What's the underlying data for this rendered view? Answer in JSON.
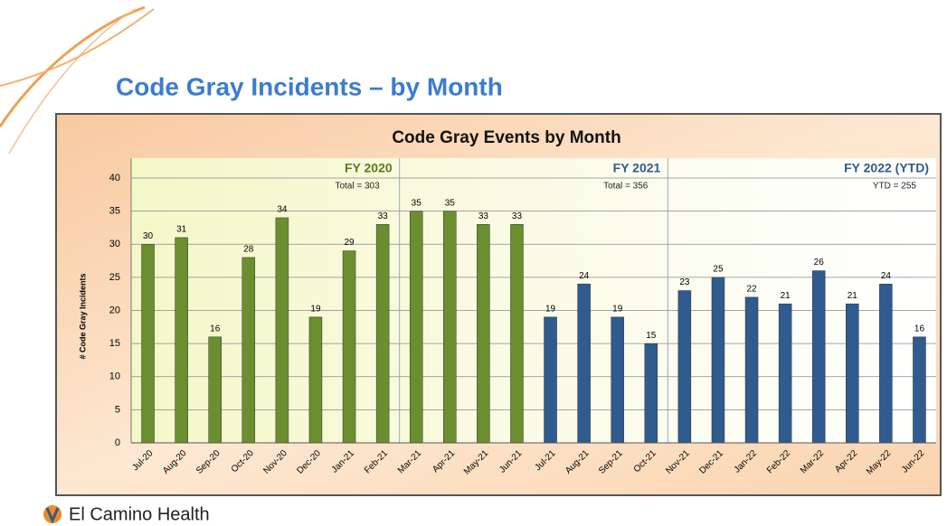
{
  "slide_title": "Code Gray Incidents – by Month",
  "logo_text": "El Camino Health",
  "chart_data": {
    "type": "bar",
    "title": "Code Gray Events by Month",
    "y_label": "# Code Gray Incidents",
    "categories": [
      "Jul-20",
      "Aug-20",
      "Sep-20",
      "Oct-20",
      "Nov-20",
      "Dec-20",
      "Jan-21",
      "Feb-21",
      "Mar-21",
      "Apr-21",
      "May-21",
      "Jun-21",
      "Jul-21",
      "Aug-21",
      "Sep-21",
      "Oct-21",
      "Nov-21",
      "Dec-21",
      "Jan-22",
      "Feb-22",
      "Mar-22",
      "Apr-22",
      "May-22",
      "Jun-22"
    ],
    "values": [
      30,
      31,
      16,
      28,
      34,
      19,
      29,
      33,
      35,
      35,
      33,
      33,
      19,
      24,
      19,
      15,
      23,
      25,
      22,
      21,
      26,
      21,
      24,
      16
    ],
    "colors": [
      "#6b8e2e",
      "#6b8e2e",
      "#6b8e2e",
      "#6b8e2e",
      "#6b8e2e",
      "#6b8e2e",
      "#6b8e2e",
      "#6b8e2e",
      "#6b8e2e",
      "#6b8e2e",
      "#6b8e2e",
      "#6b8e2e",
      "#2f5b8e",
      "#2f5b8e",
      "#2f5b8e",
      "#2f5b8e",
      "#2f5b8e",
      "#2f5b8e",
      "#2f5b8e",
      "#2f5b8e",
      "#2f5b8e",
      "#2f5b8e",
      "#2f5b8e",
      "#2f5b8e"
    ],
    "annotations": [
      {
        "label": "FY 2020",
        "note": "Total = 303",
        "color": "#5a7a20"
      },
      {
        "label": "FY 2021",
        "note": "Total = 356",
        "color": "#2f5b8e"
      },
      {
        "label": "FY 2022 (YTD)",
        "note": "YTD = 255",
        "color": "#2f5b8e"
      }
    ],
    "ylim": [
      0,
      40
    ],
    "yticks": [
      0,
      5,
      10,
      15,
      20,
      25,
      30,
      35,
      40
    ],
    "grid": true
  }
}
